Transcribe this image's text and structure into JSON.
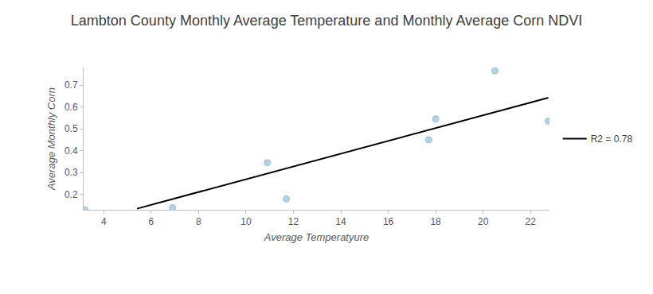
{
  "chart_data": {
    "type": "scatter",
    "title": "Lambton County Monthly Average Temperature and Monthly Average Corn NDVI",
    "x_label": "Average Temperatyure",
    "y_label": "Average Monthly Corn",
    "xlim": [
      3.15,
      22.8
    ],
    "ylim": [
      0.13,
      0.78
    ],
    "xticks": [
      4,
      6,
      8,
      10,
      12,
      14,
      16,
      18,
      20,
      22
    ],
    "yticks": [
      0.2,
      0.3,
      0.4,
      0.5,
      0.6,
      0.7
    ],
    "grid": false,
    "legend": "right",
    "series": [
      {
        "type": "scatter",
        "marker": "circle",
        "color": "#a9cfe6",
        "x": [
          3.2,
          6.9,
          10.9,
          11.7,
          17.7,
          18.0,
          20.5,
          22.75
        ],
        "values": [
          0.13,
          0.14,
          0.345,
          0.18,
          0.45,
          0.545,
          0.765,
          0.535
        ]
      },
      {
        "type": "line",
        "name": "R2 = 0.78",
        "color": "#000000",
        "line_style": "solid",
        "x": [
          5.4,
          22.75
        ],
        "values": [
          0.135,
          0.642
        ]
      }
    ]
  }
}
